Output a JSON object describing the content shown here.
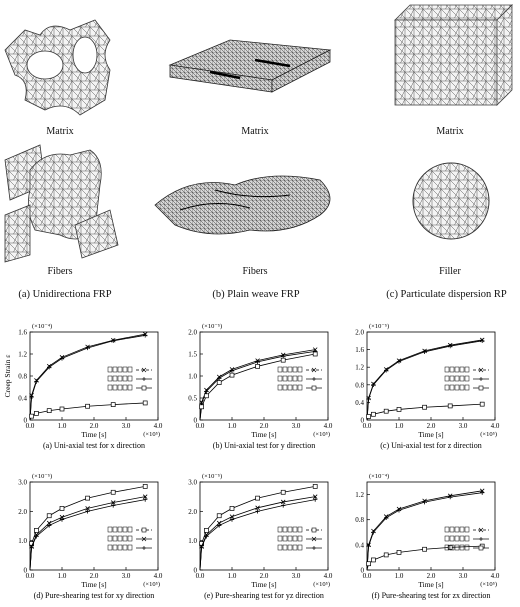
{
  "figure": {
    "meshes": [
      {
        "id": "a_matrix",
        "label": "Matrix"
      },
      {
        "id": "b_matrix",
        "label": "Matrix"
      },
      {
        "id": "c_matrix",
        "label": "Matrix"
      },
      {
        "id": "a_fibers",
        "label": "Fibers"
      },
      {
        "id": "b_fibers",
        "label": "Fibers"
      },
      {
        "id": "c_filler",
        "label": "Filler"
      }
    ],
    "model_captions": [
      "(a) Unidirectiona FRP",
      "(b) Plain weave FRP",
      "(c) Particulate dispersion RP"
    ]
  },
  "chart_data": [
    {
      "type": "line",
      "title": "(a) Uni-axial test for x direction",
      "xlabel": "Time [s]",
      "x_exponent": "(×10⁵)",
      "ylabel": "Creep Strain ε",
      "y_exponent": "(×10⁻⁴)",
      "xlim": [
        0,
        4.0
      ],
      "ylim": [
        0,
        1.6
      ],
      "xticks": [
        "0.0",
        "1.0",
        "2.0",
        "3.0",
        "4.0"
      ],
      "yticks": [
        "0",
        "0.4",
        "0.8",
        "1.2",
        "1.6"
      ],
      "series": [
        {
          "marker": "x",
          "x": [
            0,
            0.05,
            0.2,
            0.6,
            1.0,
            1.8,
            2.6,
            3.6
          ],
          "y": [
            0,
            0.45,
            0.72,
            0.98,
            1.14,
            1.33,
            1.45,
            1.56
          ]
        },
        {
          "marker": "+",
          "x": [
            0,
            0.05,
            0.2,
            0.6,
            1.0,
            1.8,
            2.6,
            3.6
          ],
          "y": [
            0,
            0.42,
            0.7,
            0.96,
            1.12,
            1.31,
            1.44,
            1.54
          ]
        },
        {
          "marker": "square",
          "x": [
            0,
            0.05,
            0.2,
            0.6,
            1.0,
            1.8,
            2.6,
            3.6
          ],
          "y": [
            0,
            0.07,
            0.12,
            0.17,
            0.2,
            0.25,
            0.28,
            0.31
          ]
        }
      ]
    },
    {
      "type": "line",
      "title": "(b) Uni-axial test for y direction",
      "xlabel": "Time [s]",
      "x_exponent": "(×10⁵)",
      "ylabel": "",
      "y_exponent": "(×10⁻⁵)",
      "xlim": [
        0,
        4.0
      ],
      "ylim": [
        0,
        2.0
      ],
      "xticks": [
        "0.0",
        "1.0",
        "2.0",
        "3.0",
        "4.0"
      ],
      "yticks": [
        "0",
        "0.5",
        "1.0",
        "1.5",
        "2.0"
      ],
      "series": [
        {
          "marker": "x",
          "x": [
            0,
            0.05,
            0.2,
            0.6,
            1.0,
            1.8,
            2.6,
            3.6
          ],
          "y": [
            0,
            0.4,
            0.68,
            0.98,
            1.15,
            1.35,
            1.48,
            1.6
          ]
        },
        {
          "marker": "+",
          "x": [
            0,
            0.05,
            0.2,
            0.6,
            1.0,
            1.8,
            2.6,
            3.6
          ],
          "y": [
            0,
            0.38,
            0.65,
            0.95,
            1.12,
            1.32,
            1.45,
            1.56
          ]
        },
        {
          "marker": "square",
          "x": [
            0,
            0.05,
            0.2,
            0.6,
            1.0,
            1.8,
            2.6,
            3.6
          ],
          "y": [
            0,
            0.3,
            0.55,
            0.85,
            1.02,
            1.22,
            1.36,
            1.5
          ]
        }
      ]
    },
    {
      "type": "line",
      "title": "(c) Uni-axial test for z direction",
      "xlabel": "Time [s]",
      "x_exponent": "(×10⁵)",
      "ylabel": "",
      "y_exponent": "(×10⁻⁵)",
      "xlim": [
        0,
        4.0
      ],
      "ylim": [
        0,
        2.0
      ],
      "xticks": [
        "0.0",
        "1.0",
        "2.0",
        "3.0",
        "4.0"
      ],
      "yticks": [
        "0",
        "0.4",
        "0.8",
        "1.2",
        "1.6",
        "2.0"
      ],
      "series": [
        {
          "marker": "x",
          "x": [
            0,
            0.05,
            0.2,
            0.6,
            1.0,
            1.8,
            2.6,
            3.6
          ],
          "y": [
            0,
            0.5,
            0.82,
            1.15,
            1.35,
            1.57,
            1.7,
            1.82
          ]
        },
        {
          "marker": "+",
          "x": [
            0,
            0.05,
            0.2,
            0.6,
            1.0,
            1.8,
            2.6,
            3.6
          ],
          "y": [
            0,
            0.48,
            0.8,
            1.13,
            1.33,
            1.55,
            1.68,
            1.8
          ]
        },
        {
          "marker": "square",
          "x": [
            0,
            0.05,
            0.2,
            0.6,
            1.0,
            1.8,
            2.6,
            3.6
          ],
          "y": [
            0,
            0.08,
            0.13,
            0.2,
            0.24,
            0.29,
            0.32,
            0.36
          ]
        }
      ]
    },
    {
      "type": "line",
      "title": "(d) Pure-shearing test for xy direction",
      "xlabel": "Time [s]",
      "x_exponent": "(×10⁵)",
      "ylabel": "",
      "y_exponent": "(×10⁻⁵)",
      "xlim": [
        0,
        4.0
      ],
      "ylim": [
        0,
        3.0
      ],
      "xticks": [
        "0.0",
        "1.0",
        "2.0",
        "3.0",
        "4.0"
      ],
      "yticks": [
        "0",
        "1.0",
        "2.0",
        "3.0"
      ],
      "series": [
        {
          "marker": "square",
          "x": [
            0,
            0.05,
            0.2,
            0.6,
            1.0,
            1.8,
            2.6,
            3.6
          ],
          "y": [
            0,
            0.9,
            1.35,
            1.85,
            2.1,
            2.45,
            2.65,
            2.85
          ]
        },
        {
          "marker": "x",
          "x": [
            0,
            0.05,
            0.2,
            0.6,
            1.0,
            1.8,
            2.6,
            3.6
          ],
          "y": [
            0,
            0.8,
            1.2,
            1.6,
            1.8,
            2.1,
            2.3,
            2.5
          ]
        },
        {
          "marker": "+",
          "x": [
            0,
            0.05,
            0.2,
            0.6,
            1.0,
            1.8,
            2.6,
            3.6
          ],
          "y": [
            0,
            0.78,
            1.15,
            1.52,
            1.72,
            2.0,
            2.2,
            2.4
          ]
        }
      ]
    },
    {
      "type": "line",
      "title": "(e) Pure-shearing test for yz direction",
      "xlabel": "Time [s]",
      "x_exponent": "(×10⁵)",
      "ylabel": "",
      "y_exponent": "(×10⁻⁵)",
      "xlim": [
        0,
        4.0
      ],
      "ylim": [
        0,
        3.0
      ],
      "xticks": [
        "0.0",
        "1.0",
        "2.0",
        "3.0",
        "4.0"
      ],
      "yticks": [
        "0",
        "1.0",
        "2.0",
        "3.0"
      ],
      "series": [
        {
          "marker": "square",
          "x": [
            0,
            0.05,
            0.2,
            0.6,
            1.0,
            1.8,
            2.6,
            3.6
          ],
          "y": [
            0,
            0.9,
            1.35,
            1.85,
            2.1,
            2.45,
            2.65,
            2.85
          ]
        },
        {
          "marker": "x",
          "x": [
            0,
            0.05,
            0.2,
            0.6,
            1.0,
            1.8,
            2.6,
            3.6
          ],
          "y": [
            0,
            0.8,
            1.2,
            1.6,
            1.82,
            2.12,
            2.32,
            2.5
          ]
        },
        {
          "marker": "+",
          "x": [
            0,
            0.05,
            0.2,
            0.6,
            1.0,
            1.8,
            2.6,
            3.6
          ],
          "y": [
            0,
            0.78,
            1.15,
            1.52,
            1.72,
            2.0,
            2.2,
            2.4
          ]
        }
      ]
    },
    {
      "type": "line",
      "title": "(f) Pure-shearing test for zx direction",
      "xlabel": "Time [s]",
      "x_exponent": "(×10⁵)",
      "ylabel": "",
      "y_exponent": "(×10⁻⁴)",
      "xlim": [
        0,
        4.0
      ],
      "ylim": [
        0,
        1.4
      ],
      "xticks": [
        "0.0",
        "1.0",
        "2.0",
        "3.0",
        "4.0"
      ],
      "yticks": [
        "0",
        "0.4",
        "0.8",
        "1.2"
      ],
      "series": [
        {
          "marker": "x",
          "x": [
            0,
            0.05,
            0.2,
            0.6,
            1.0,
            1.8,
            2.6,
            3.6
          ],
          "y": [
            0,
            0.4,
            0.62,
            0.85,
            0.97,
            1.1,
            1.18,
            1.26
          ]
        },
        {
          "marker": "+",
          "x": [
            0,
            0.05,
            0.2,
            0.6,
            1.0,
            1.8,
            2.6,
            3.6
          ],
          "y": [
            0,
            0.38,
            0.6,
            0.83,
            0.95,
            1.08,
            1.16,
            1.23
          ]
        },
        {
          "marker": "square",
          "x": [
            0,
            0.05,
            0.2,
            0.6,
            1.0,
            1.8,
            2.6,
            3.6
          ],
          "y": [
            0,
            0.1,
            0.16,
            0.24,
            0.28,
            0.33,
            0.36,
            0.38
          ]
        }
      ]
    }
  ]
}
